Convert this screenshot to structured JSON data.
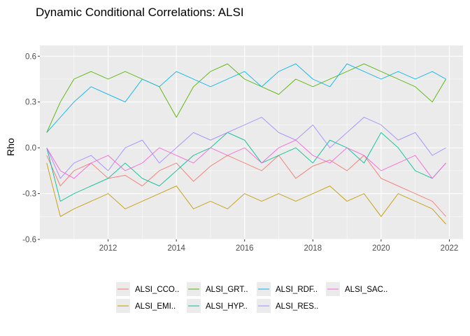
{
  "chart_data": {
    "type": "line",
    "title": "Dynamic Conditional Correlations: ALSI",
    "xlabel": "",
    "ylabel": "Rho",
    "xlim": [
      2010.0,
      2022.4
    ],
    "ylim": [
      -0.6,
      0.67
    ],
    "x_ticks": [
      "2012",
      "2014",
      "2016",
      "2018",
      "2020",
      "2022"
    ],
    "y_ticks": [
      "-0.6",
      "-0.3",
      "0.0",
      "0.3",
      "0.6"
    ],
    "grid": true,
    "legend_position": "bottom",
    "series": [
      {
        "name": "ALSI_CCO..",
        "color": "#F8766D",
        "x": [
          2010.2,
          2010.6,
          2011.0,
          2011.5,
          2012.0,
          2012.5,
          2013.0,
          2013.5,
          2014.0,
          2014.5,
          2015.0,
          2015.5,
          2016.0,
          2016.5,
          2017.0,
          2017.5,
          2018.0,
          2018.5,
          2019.0,
          2019.5,
          2020.0,
          2020.5,
          2021.0,
          2021.5,
          2021.9
        ],
        "values": [
          -0.05,
          -0.25,
          -0.15,
          -0.1,
          -0.2,
          -0.18,
          -0.25,
          -0.15,
          -0.1,
          -0.22,
          -0.12,
          -0.05,
          -0.1,
          -0.15,
          -0.05,
          -0.2,
          -0.12,
          -0.08,
          -0.15,
          -0.05,
          -0.2,
          -0.25,
          -0.3,
          -0.35,
          -0.45
        ]
      },
      {
        "name": "ALSI_EMI..",
        "color": "#C49A00",
        "x": [
          2010.2,
          2010.6,
          2011.0,
          2011.5,
          2012.0,
          2012.5,
          2013.0,
          2013.5,
          2014.0,
          2014.5,
          2015.0,
          2015.5,
          2016.0,
          2016.5,
          2017.0,
          2017.5,
          2018.0,
          2018.5,
          2019.0,
          2019.5,
          2020.0,
          2020.5,
          2021.0,
          2021.5,
          2021.9
        ],
        "values": [
          -0.1,
          -0.45,
          -0.4,
          -0.35,
          -0.3,
          -0.4,
          -0.35,
          -0.3,
          -0.25,
          -0.4,
          -0.35,
          -0.4,
          -0.3,
          -0.35,
          -0.3,
          -0.35,
          -0.3,
          -0.25,
          -0.35,
          -0.3,
          -0.45,
          -0.3,
          -0.35,
          -0.4,
          -0.5
        ]
      },
      {
        "name": "ALSI_GRT..",
        "color": "#53B400",
        "x": [
          2010.2,
          2010.6,
          2011.0,
          2011.5,
          2012.0,
          2012.5,
          2013.0,
          2013.5,
          2014.0,
          2014.5,
          2015.0,
          2015.5,
          2016.0,
          2016.5,
          2017.0,
          2017.5,
          2018.0,
          2018.5,
          2019.0,
          2019.5,
          2020.0,
          2020.5,
          2021.0,
          2021.5,
          2021.9
        ],
        "values": [
          0.1,
          0.3,
          0.45,
          0.5,
          0.45,
          0.5,
          0.45,
          0.4,
          0.2,
          0.4,
          0.5,
          0.55,
          0.45,
          0.4,
          0.35,
          0.45,
          0.4,
          0.45,
          0.5,
          0.55,
          0.5,
          0.45,
          0.4,
          0.3,
          0.45
        ]
      },
      {
        "name": "ALSI_HYP..",
        "color": "#00C094",
        "x": [
          2010.2,
          2010.6,
          2011.0,
          2011.5,
          2012.0,
          2012.5,
          2013.0,
          2013.5,
          2014.0,
          2014.5,
          2015.0,
          2015.5,
          2016.0,
          2016.5,
          2017.0,
          2017.5,
          2018.0,
          2018.5,
          2019.0,
          2019.5,
          2020.0,
          2020.5,
          2021.0,
          2021.5,
          2021.9
        ],
        "values": [
          0.0,
          -0.35,
          -0.3,
          -0.25,
          -0.2,
          -0.1,
          -0.2,
          -0.25,
          -0.15,
          -0.05,
          0.0,
          0.1,
          0.05,
          -0.1,
          -0.05,
          0.0,
          -0.1,
          0.05,
          0.0,
          -0.1,
          0.1,
          0.0,
          -0.15,
          -0.2,
          -0.1
        ]
      },
      {
        "name": "ALSI_RDF..",
        "color": "#00B6EB",
        "x": [
          2010.2,
          2010.6,
          2011.0,
          2011.5,
          2012.0,
          2012.5,
          2013.0,
          2013.5,
          2014.0,
          2014.5,
          2015.0,
          2015.5,
          2016.0,
          2016.5,
          2017.0,
          2017.5,
          2018.0,
          2018.5,
          2019.0,
          2019.5,
          2020.0,
          2020.5,
          2021.0,
          2021.5,
          2021.9
        ],
        "values": [
          0.1,
          0.2,
          0.3,
          0.4,
          0.35,
          0.3,
          0.45,
          0.4,
          0.5,
          0.45,
          0.4,
          0.45,
          0.5,
          0.4,
          0.5,
          0.55,
          0.45,
          0.4,
          0.55,
          0.5,
          0.45,
          0.5,
          0.45,
          0.5,
          0.45
        ]
      },
      {
        "name": "ALSI_RES..",
        "color": "#A58AFF",
        "x": [
          2010.2,
          2010.6,
          2011.0,
          2011.5,
          2012.0,
          2012.5,
          2013.0,
          2013.5,
          2014.0,
          2014.5,
          2015.0,
          2015.5,
          2016.0,
          2016.5,
          2017.0,
          2017.5,
          2018.0,
          2018.5,
          2019.0,
          2019.5,
          2020.0,
          2020.5,
          2021.0,
          2021.5,
          2021.9
        ],
        "values": [
          0.0,
          -0.2,
          -0.1,
          -0.05,
          -0.15,
          0.0,
          0.05,
          -0.1,
          0.0,
          0.1,
          0.05,
          0.1,
          0.15,
          0.2,
          0.1,
          0.05,
          0.15,
          0.0,
          0.1,
          0.2,
          0.15,
          0.05,
          0.1,
          -0.05,
          0.0
        ]
      },
      {
        "name": "ALSI_SAC..",
        "color": "#FB61D7",
        "x": [
          2010.2,
          2010.6,
          2011.0,
          2011.5,
          2012.0,
          2012.5,
          2013.0,
          2013.5,
          2014.0,
          2014.5,
          2015.0,
          2015.5,
          2016.0,
          2016.5,
          2017.0,
          2017.5,
          2018.0,
          2018.5,
          2019.0,
          2019.5,
          2020.0,
          2020.5,
          2021.0,
          2021.5,
          2021.9
        ],
        "values": [
          0.0,
          -0.15,
          -0.2,
          -0.1,
          -0.05,
          -0.15,
          -0.1,
          0.0,
          -0.05,
          -0.1,
          0.0,
          -0.05,
          0.0,
          -0.1,
          0.0,
          0.05,
          -0.05,
          -0.1,
          0.0,
          -0.05,
          -0.15,
          -0.1,
          -0.05,
          -0.2,
          -0.1
        ]
      }
    ]
  }
}
